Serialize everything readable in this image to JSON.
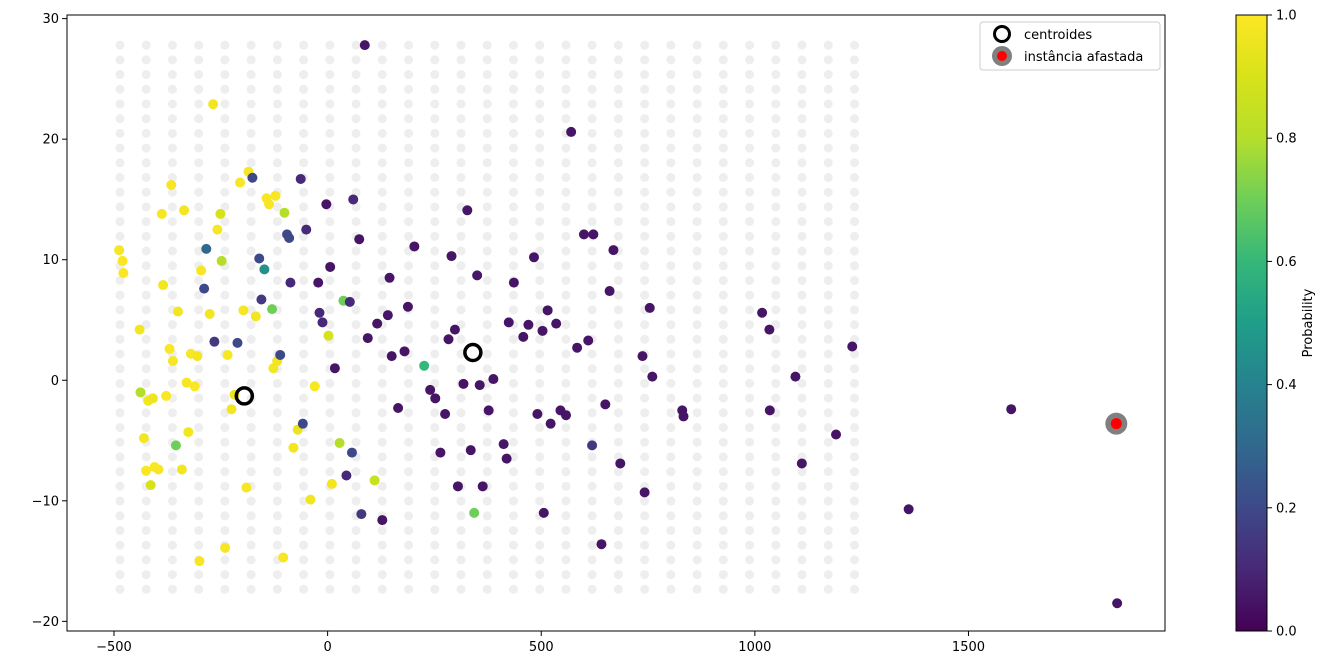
{
  "chart_data": [
    {
      "type": "scatter",
      "title": "",
      "xlabel": "",
      "ylabel": "",
      "xlim": [
        -610,
        1960
      ],
      "ylim": [
        -20.8,
        30.3
      ],
      "xticks": [
        -500,
        0,
        500,
        1000,
        1500
      ],
      "yticks": [
        -20,
        -10,
        0,
        10,
        20,
        30
      ],
      "grid": false,
      "legend_position": "top-right",
      "legend": [
        {
          "label": "centroides",
          "marker": "hollow-circle",
          "color": "#000000"
        },
        {
          "label": "instância afastada",
          "marker": "circle-with-ring",
          "color": "#ff0000",
          "ring_color": "#808080"
        }
      ],
      "background_grid_points": {
        "x_start": -486,
        "x_step": 61.4,
        "x_count": 29,
        "y_start": 27.8,
        "y_step": -1.22,
        "y_count": 38,
        "color": "#eeeeee"
      },
      "series": [
        {
          "name": "centroides",
          "points": [
            [
              -195,
              -1.3
            ],
            [
              340,
              2.3
            ]
          ]
        },
        {
          "name": "instância afastada",
          "points": [
            [
              1846,
              -3.6
            ]
          ]
        }
      ],
      "points": [
        [
          -488,
          10.8,
          0.98
        ],
        [
          -480,
          9.9,
          0.99
        ],
        [
          -478,
          8.9,
          0.99
        ],
        [
          -440,
          4.2,
          0.97
        ],
        [
          -438,
          -1.0,
          0.8
        ],
        [
          -430,
          -4.8,
          0.97
        ],
        [
          -425,
          -7.5,
          0.99
        ],
        [
          -420,
          -1.7,
          0.97
        ],
        [
          -414,
          -8.7,
          0.9
        ],
        [
          -409,
          -1.5,
          0.96
        ],
        [
          -405,
          -7.2,
          0.99
        ],
        [
          -396,
          -7.4,
          0.98
        ],
        [
          -388,
          13.8,
          0.98
        ],
        [
          -385,
          7.9,
          0.97
        ],
        [
          -378,
          -1.3,
          0.99
        ],
        [
          -370,
          2.6,
          0.99
        ],
        [
          -366,
          16.2,
          0.98
        ],
        [
          -362,
          1.6,
          0.98
        ],
        [
          -355,
          -5.4,
          0.7
        ],
        [
          -350,
          5.7,
          0.97
        ],
        [
          -341,
          -7.4,
          0.97
        ],
        [
          -336,
          14.1,
          0.97
        ],
        [
          -330,
          -0.2,
          0.98
        ],
        [
          -326,
          -4.3,
          0.97
        ],
        [
          -320,
          2.2,
          0.99
        ],
        [
          -311,
          -0.5,
          0.99
        ],
        [
          -305,
          2.0,
          0.97
        ],
        [
          -300,
          -15.0,
          0.98
        ],
        [
          -296,
          9.1,
          0.98
        ],
        [
          -289,
          7.6,
          0.2
        ],
        [
          -284,
          10.9,
          0.3
        ],
        [
          -276,
          5.5,
          0.97
        ],
        [
          -268,
          22.9,
          0.97
        ],
        [
          -265,
          3.2,
          0.15
        ],
        [
          -258,
          12.5,
          0.98
        ],
        [
          -251,
          13.8,
          0.9
        ],
        [
          -248,
          9.9,
          0.8
        ],
        [
          -240,
          -13.9,
          0.98
        ],
        [
          -234,
          2.1,
          0.98
        ],
        [
          -225,
          -2.4,
          0.97
        ],
        [
          -218,
          -1.2,
          0.95
        ],
        [
          -211,
          3.1,
          0.2
        ],
        [
          -205,
          16.4,
          0.98
        ],
        [
          -197,
          5.8,
          0.98
        ],
        [
          -190,
          -8.9,
          0.98
        ],
        [
          -185,
          17.3,
          0.98
        ],
        [
          -176,
          16.8,
          0.2
        ],
        [
          -168,
          5.3,
          0.97
        ],
        [
          -160,
          10.1,
          0.2
        ],
        [
          -155,
          6.7,
          0.15
        ],
        [
          -148,
          9.2,
          0.45
        ],
        [
          -143,
          15.1,
          0.98
        ],
        [
          -137,
          14.6,
          0.98
        ],
        [
          -130,
          5.9,
          0.7
        ],
        [
          -127,
          1.0,
          0.97
        ],
        [
          -122,
          15.3,
          0.98
        ],
        [
          -118,
          1.6,
          0.97
        ],
        [
          -111,
          2.1,
          0.2
        ],
        [
          -104,
          -14.7,
          0.98
        ],
        [
          -101,
          13.9,
          0.8
        ],
        [
          -95,
          12.1,
          0.2
        ],
        [
          -90,
          11.8,
          0.2
        ],
        [
          -87,
          8.1,
          0.1
        ],
        [
          -80,
          -5.6,
          0.97
        ],
        [
          -70,
          -4.1,
          0.95
        ],
        [
          -63,
          16.7,
          0.1
        ],
        [
          -58,
          -3.6,
          0.2
        ],
        [
          -50,
          12.5,
          0.1
        ],
        [
          -40,
          -9.9,
          0.97
        ],
        [
          -30,
          -0.5,
          0.98
        ],
        [
          -22,
          8.1,
          0.05
        ],
        [
          -19,
          5.6,
          0.1
        ],
        [
          -12,
          4.8,
          0.1
        ],
        [
          -3,
          14.6,
          0.05
        ],
        [
          2,
          3.7,
          0.9
        ],
        [
          6,
          9.4,
          0.05
        ],
        [
          10,
          -8.6,
          0.97
        ],
        [
          17,
          1.0,
          0.05
        ],
        [
          28,
          -5.2,
          0.8
        ],
        [
          37,
          6.6,
          0.7
        ],
        [
          44,
          -7.9,
          0.1
        ],
        [
          52,
          6.5,
          0.1
        ],
        [
          57,
          -6.0,
          0.2
        ],
        [
          60,
          15.0,
          0.1
        ],
        [
          74,
          11.7,
          0.05
        ],
        [
          79,
          -11.1,
          0.15
        ],
        [
          87,
          27.8,
          0.05
        ],
        [
          94,
          3.5,
          0.05
        ],
        [
          110,
          -8.3,
          0.85
        ],
        [
          116,
          4.7,
          0.05
        ],
        [
          128,
          -11.6,
          0.05
        ],
        [
          141,
          5.4,
          0.05
        ],
        [
          145,
          8.5,
          0.05
        ],
        [
          150,
          2.0,
          0.05
        ],
        [
          165,
          -2.3,
          0.05
        ],
        [
          180,
          2.4,
          0.05
        ],
        [
          188,
          6.1,
          0.05
        ],
        [
          203,
          11.1,
          0.05
        ],
        [
          226,
          1.2,
          0.6
        ],
        [
          240,
          -0.8,
          0.05
        ],
        [
          252,
          -1.5,
          0.05
        ],
        [
          264,
          -6.0,
          0.05
        ],
        [
          275,
          -2.8,
          0.05
        ],
        [
          283,
          3.4,
          0.05
        ],
        [
          290,
          10.3,
          0.05
        ],
        [
          298,
          4.2,
          0.05
        ],
        [
          305,
          -8.8,
          0.05
        ],
        [
          318,
          -0.3,
          0.05
        ],
        [
          327,
          14.1,
          0.05
        ],
        [
          335,
          -5.8,
          0.05
        ],
        [
          343,
          -11.0,
          0.7
        ],
        [
          350,
          8.7,
          0.05
        ],
        [
          356,
          -0.4,
          0.05
        ],
        [
          363,
          -8.8,
          0.05
        ],
        [
          377,
          -2.5,
          0.05
        ],
        [
          388,
          0.1,
          0.05
        ],
        [
          412,
          -5.3,
          0.05
        ],
        [
          419,
          -6.5,
          0.05
        ],
        [
          424,
          4.8,
          0.05
        ],
        [
          436,
          8.1,
          0.05
        ],
        [
          458,
          3.6,
          0.05
        ],
        [
          470,
          4.6,
          0.05
        ],
        [
          483,
          10.2,
          0.05
        ],
        [
          491,
          -2.8,
          0.05
        ],
        [
          503,
          4.1,
          0.05
        ],
        [
          506,
          -11.0,
          0.05
        ],
        [
          515,
          5.8,
          0.05
        ],
        [
          522,
          -3.6,
          0.05
        ],
        [
          535,
          4.7,
          0.05
        ],
        [
          545,
          -2.5,
          0.05
        ],
        [
          558,
          -2.9,
          0.05
        ],
        [
          570,
          20.6,
          0.05
        ],
        [
          584,
          2.7,
          0.05
        ],
        [
          600,
          12.1,
          0.05
        ],
        [
          610,
          3.3,
          0.05
        ],
        [
          619,
          -5.4,
          0.15
        ],
        [
          622,
          12.1,
          0.05
        ],
        [
          641,
          -13.6,
          0.05
        ],
        [
          650,
          -2.0,
          0.05
        ],
        [
          660,
          7.4,
          0.05
        ],
        [
          669,
          10.8,
          0.05
        ],
        [
          685,
          -6.9,
          0.05
        ],
        [
          737,
          2.0,
          0.05
        ],
        [
          742,
          -9.3,
          0.05
        ],
        [
          754,
          6.0,
          0.05
        ],
        [
          760,
          0.3,
          0.05
        ],
        [
          830,
          -2.5,
          0.05
        ],
        [
          833,
          -3.0,
          0.05
        ],
        [
          1017,
          5.6,
          0.05
        ],
        [
          1034,
          4.2,
          0.05
        ],
        [
          1035,
          -2.5,
          0.05
        ],
        [
          1095,
          0.3,
          0.05
        ],
        [
          1110,
          -6.9,
          0.05
        ],
        [
          1190,
          -4.5,
          0.05
        ],
        [
          1228,
          2.8,
          0.05
        ],
        [
          1360,
          -10.7,
          0.05
        ],
        [
          1600,
          -2.4,
          0.05
        ],
        [
          1848,
          -18.5,
          0.05
        ]
      ],
      "colorbar": {
        "label": "Probability",
        "ticks": [
          0.0,
          0.2,
          0.4,
          0.6,
          0.8,
          1.0
        ],
        "tick_labels": [
          "0.0",
          "0.2",
          "0.4",
          "0.6",
          "0.8",
          "1.0"
        ],
        "colormap": "viridis"
      }
    }
  ]
}
